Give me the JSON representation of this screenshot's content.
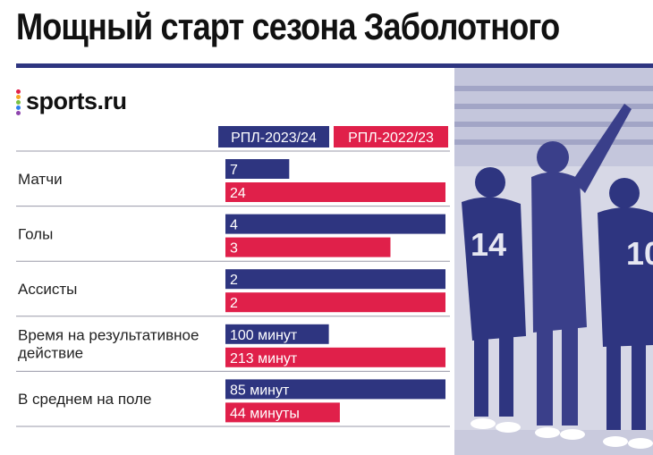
{
  "header": {
    "title": "Мощный старт сезона Заболотного",
    "logo": "sports.ru"
  },
  "colors": {
    "series_1": "#2e3580",
    "series_2": "#e0204a",
    "rule": "#2e3580",
    "separator": "#9a9aa8",
    "photo_tint": "#3a3f8a"
  },
  "photo": {
    "icon": "football-players-celebration-photo"
  },
  "chart_data": {
    "type": "bar",
    "orientation": "horizontal",
    "categories": [
      "Матчи",
      "Голы",
      "Ассисты",
      "Время на результативное действие",
      "В среднем на поле"
    ],
    "category_lines": [
      [
        "Матчи"
      ],
      [
        "Голы"
      ],
      [
        "Ассисты"
      ],
      [
        "Время на результативное",
        "действие"
      ],
      [
        "В среднем на поле"
      ]
    ],
    "series": [
      {
        "name": "РПЛ-2023/24",
        "color": "#2e3580",
        "values": [
          7,
          4,
          2,
          100,
          85
        ],
        "labels": [
          "7",
          "4",
          "2",
          "100 минут",
          "85 минут"
        ],
        "scale": [
          0.29,
          1.0,
          1.0,
          0.47,
          1.0
        ]
      },
      {
        "name": "РПЛ-2022/23",
        "color": "#e0204a",
        "values": [
          24,
          3,
          2,
          213,
          44
        ],
        "labels": [
          "24",
          "3",
          "2",
          "213 минут",
          "44 минуты"
        ],
        "scale": [
          1.0,
          0.75,
          1.0,
          1.0,
          0.52
        ]
      }
    ],
    "legend": "top"
  }
}
